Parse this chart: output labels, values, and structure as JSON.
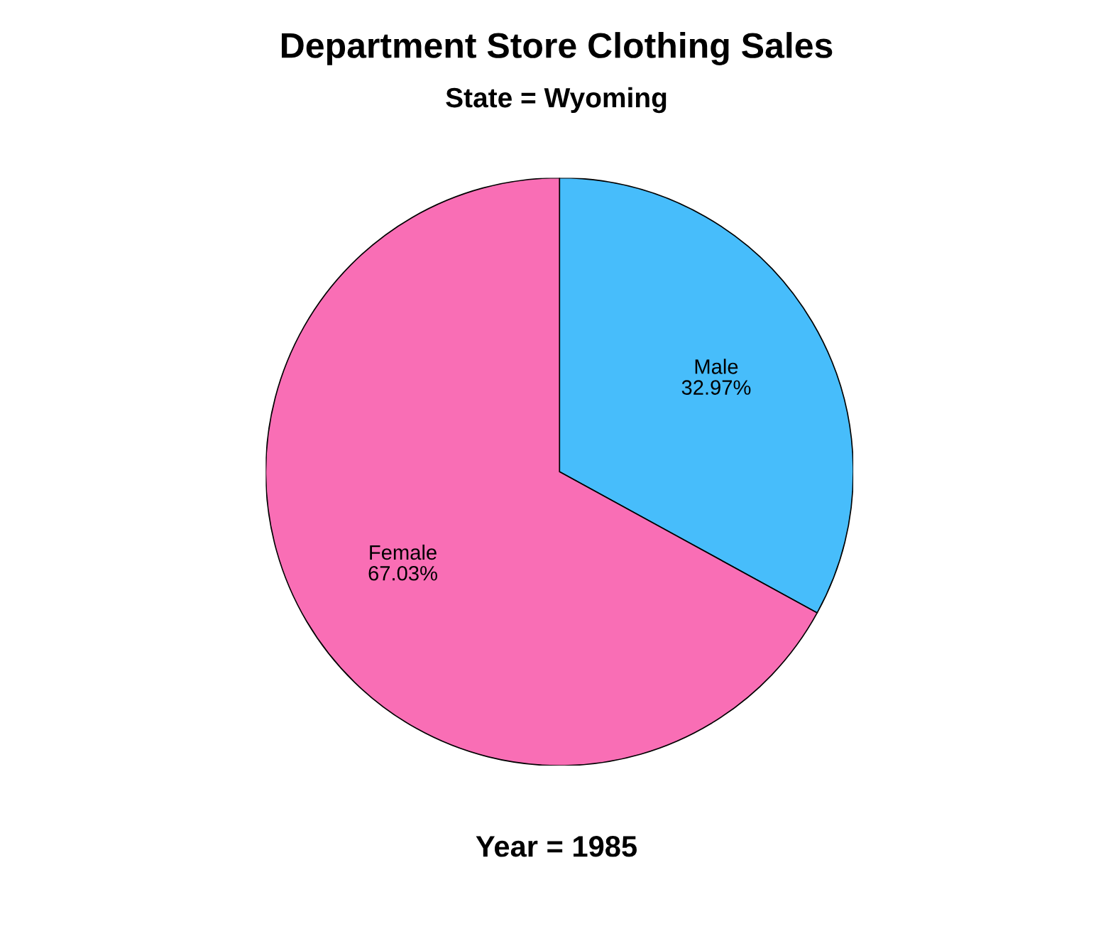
{
  "chart_data": {
    "type": "pie",
    "title": "Department Store Clothing Sales",
    "subtitle": "State = Wyoming",
    "xlabel": "Year = 1985",
    "categories": [
      "Male",
      "Female"
    ],
    "values": [
      32.97,
      67.03
    ],
    "colors": [
      "#47bdfb",
      "#f96eb5"
    ],
    "value_labels": [
      "32.97%",
      "67.03%"
    ]
  }
}
